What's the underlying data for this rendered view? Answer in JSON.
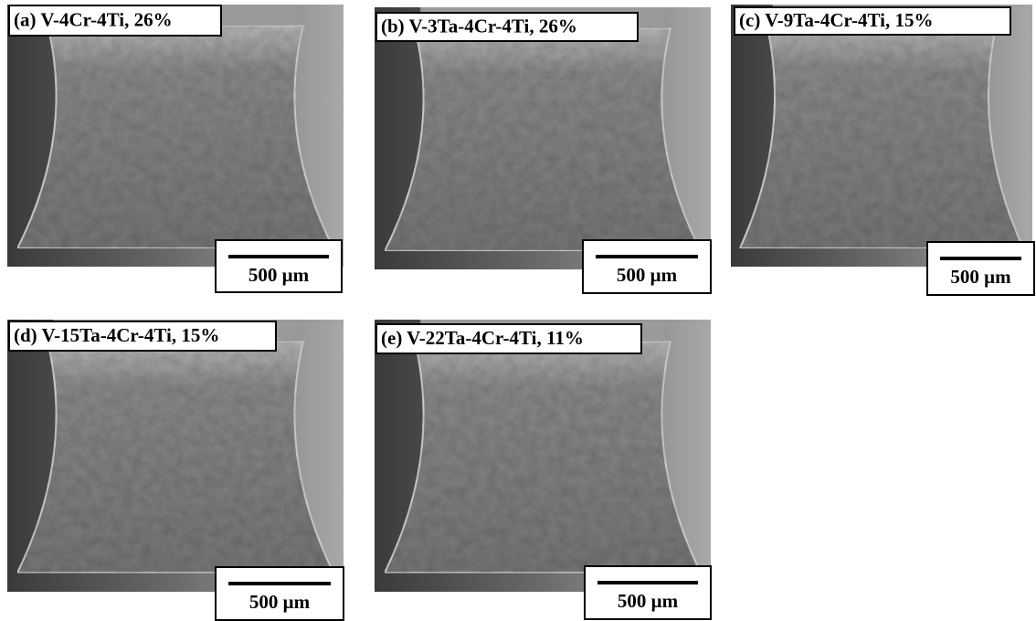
{
  "figure": {
    "panels": [
      {
        "label": "(a) V-4Cr-4Ti, 26%",
        "scale": "500 μm"
      },
      {
        "label": "(b) V-3Ta-4Cr-4Ti, 26%",
        "scale": "500 μm"
      },
      {
        "label": "(c) V-9Ta-4Cr-4Ti, 15%",
        "scale": "500 μm"
      },
      {
        "label": "(d) V-15Ta-4Cr-4Ti, 15%",
        "scale": "500 μm"
      },
      {
        "label": "(e) V-22Ta-4Cr-4Ti, 11%",
        "scale": "500 μm"
      }
    ]
  }
}
